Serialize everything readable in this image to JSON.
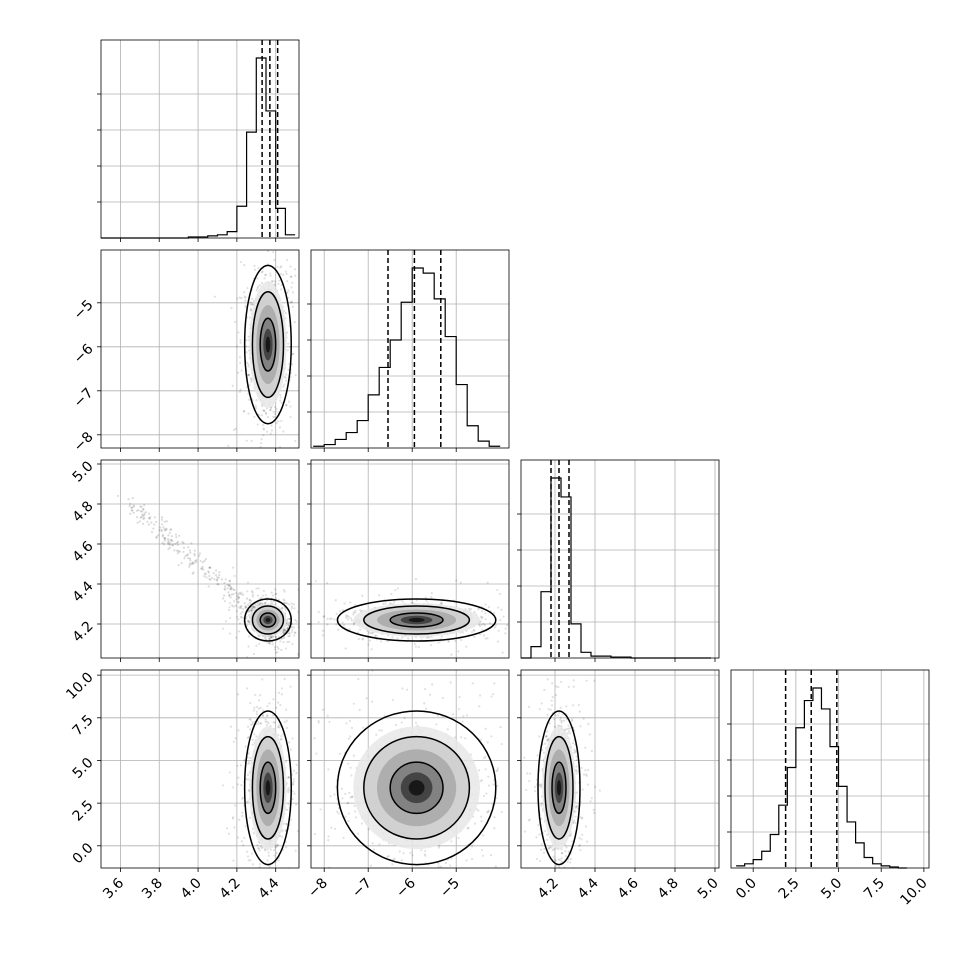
{
  "chart_data": {
    "type": "corner",
    "parameters": [
      "",
      "",
      "",
      ""
    ],
    "grid": true,
    "contour_levels": [
      0.393,
      0.865,
      0.989
    ],
    "axis_ranges": [
      [
        3.5,
        4.52
      ],
      [
        -8.3,
        -3.8
      ],
      [
        4.03,
        5.02
      ],
      [
        -1.3,
        10.3
      ]
    ],
    "tick_values": [
      [
        3.6,
        3.8,
        4.0,
        4.2,
        4.4
      ],
      [
        -8,
        -7,
        -6,
        -5
      ],
      [
        4.2,
        4.4,
        4.6,
        4.8,
        5.0
      ],
      [
        0.0,
        2.5,
        5.0,
        7.5,
        10.0
      ]
    ],
    "tick_labels": [
      [
        "3.6",
        "3.8",
        "4.0",
        "4.2",
        "4.4"
      ],
      [
        "−8",
        "−7",
        "−6",
        "−5"
      ],
      [
        "4.2",
        "4.4",
        "4.6",
        "4.8",
        "5.0"
      ],
      [
        "0.0",
        "2.5",
        "5.0",
        "7.5",
        "10.0"
      ]
    ],
    "quantiles": [
      [
        4.33,
        4.37,
        4.41
      ],
      [
        -6.55,
        -5.95,
        -5.35
      ],
      [
        4.18,
        4.22,
        4.27
      ],
      [
        1.9,
        3.4,
        4.9
      ]
    ],
    "histograms": [
      {
        "bin_edges": [
          3.5,
          3.55,
          3.6,
          3.65,
          3.7,
          3.75,
          3.8,
          3.85,
          3.9,
          3.95,
          4.0,
          4.05,
          4.1,
          4.15,
          4.2,
          4.25,
          4.3,
          4.35,
          4.4,
          4.45,
          4.5
        ],
        "counts": [
          0,
          0,
          0,
          0,
          0,
          0,
          0,
          0,
          0,
          1,
          1,
          2,
          3,
          6,
          30,
          100,
          170,
          120,
          28,
          3
        ]
      },
      {
        "bin_edges": [
          -8.25,
          -8.0,
          -7.75,
          -7.5,
          -7.25,
          -7.0,
          -6.75,
          -6.5,
          -6.25,
          -6.0,
          -5.75,
          -5.5,
          -5.25,
          -5.0,
          -4.75,
          -4.5,
          -4.25,
          -4.0
        ],
        "counts": [
          1,
          2,
          5,
          9,
          16,
          31,
          47,
          63,
          85,
          105,
          102,
          87,
          65,
          37,
          13,
          4,
          1
        ]
      },
      {
        "bin_edges": [
          4.03,
          4.08,
          4.13,
          4.18,
          4.23,
          4.28,
          4.33,
          4.38,
          4.43,
          4.48,
          4.53,
          4.58,
          4.63,
          4.68,
          4.73,
          4.78,
          4.83,
          4.88,
          4.93,
          4.98
        ],
        "counts": [
          0,
          6,
          35,
          95,
          85,
          18,
          3,
          1,
          1,
          0.5,
          0.5,
          0,
          0,
          0,
          0,
          0,
          0,
          0,
          0
        ]
      },
      {
        "bin_edges": [
          -1.0,
          -0.5,
          0.0,
          0.5,
          1.0,
          1.5,
          2.0,
          2.5,
          3.0,
          3.5,
          4.0,
          4.5,
          5.0,
          5.5,
          6.0,
          6.5,
          7.0,
          7.5,
          8.0,
          8.5,
          9.0
        ],
        "counts": [
          1,
          2,
          4,
          8,
          16,
          30,
          48,
          67,
          80,
          86,
          76,
          58,
          39,
          22,
          12,
          5,
          2,
          1,
          0.5,
          0
        ]
      }
    ],
    "pairs": [
      {
        "x": 0,
        "y": 1,
        "mean": [
          4.36,
          -5.95
        ],
        "sd": [
          0.04,
          0.6
        ],
        "corr": 0.0
      },
      {
        "x": 0,
        "y": 2,
        "mean": [
          4.36,
          4.22
        ],
        "sd": [
          0.04,
          0.035
        ],
        "corr": -0.35
      },
      {
        "x": 1,
        "y": 2,
        "mean": [
          -5.9,
          4.22
        ],
        "sd": [
          0.6,
          0.035
        ],
        "corr": 0.0
      },
      {
        "x": 0,
        "y": 3,
        "mean": [
          4.36,
          3.4
        ],
        "sd": [
          0.04,
          1.5
        ],
        "corr": 0.0
      },
      {
        "x": 1,
        "y": 3,
        "mean": [
          -5.9,
          3.4
        ],
        "sd": [
          0.6,
          1.5
        ],
        "corr": 0.0
      },
      {
        "x": 2,
        "y": 3,
        "mean": [
          4.22,
          3.4
        ],
        "sd": [
          0.035,
          1.5
        ],
        "corr": 0.0
      }
    ]
  }
}
